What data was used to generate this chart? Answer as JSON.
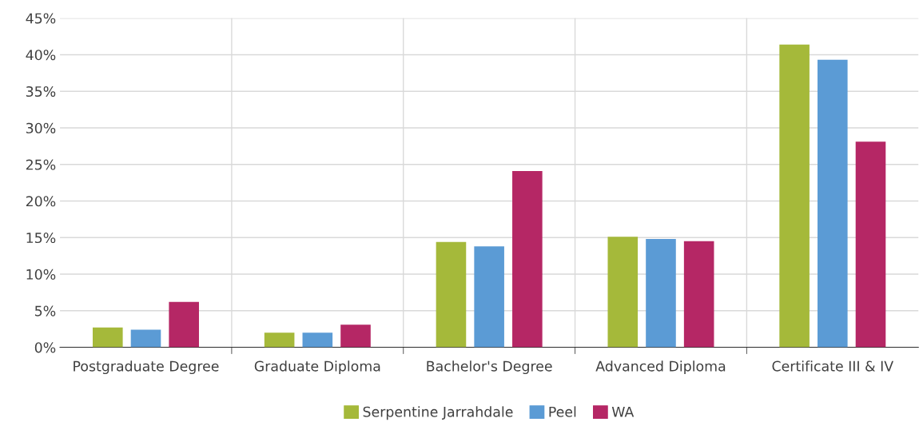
{
  "chart_data": {
    "type": "bar",
    "categories": [
      "Postgraduate Degree",
      "Graduate Diploma",
      "Bachelor's Degree",
      "Advanced Diploma",
      "Certificate III & IV"
    ],
    "series": [
      {
        "name": "Serpentine Jarrahdale",
        "color": "#a5b93a",
        "values": [
          2.7,
          2.0,
          14.4,
          15.1,
          41.4
        ]
      },
      {
        "name": "Peel",
        "color": "#5b9bd5",
        "values": [
          2.4,
          2.0,
          13.8,
          14.8,
          39.3
        ]
      },
      {
        "name": "WA",
        "color": "#b52765",
        "values": [
          6.2,
          3.1,
          24.1,
          14.5,
          28.1
        ]
      }
    ],
    "ylim": [
      0,
      45
    ],
    "yticks": [
      {
        "value": 0,
        "label": "0%"
      },
      {
        "value": 5,
        "label": "5%"
      },
      {
        "value": 10,
        "label": "10%"
      },
      {
        "value": 15,
        "label": "15%"
      },
      {
        "value": 20,
        "label": "20%"
      },
      {
        "value": 25,
        "label": "25%"
      },
      {
        "value": 30,
        "label": "30%"
      },
      {
        "value": 35,
        "label": "35%"
      },
      {
        "value": 40,
        "label": "40%"
      },
      {
        "value": 45,
        "label": "45%"
      }
    ],
    "grid": true,
    "legend": "bottom"
  }
}
